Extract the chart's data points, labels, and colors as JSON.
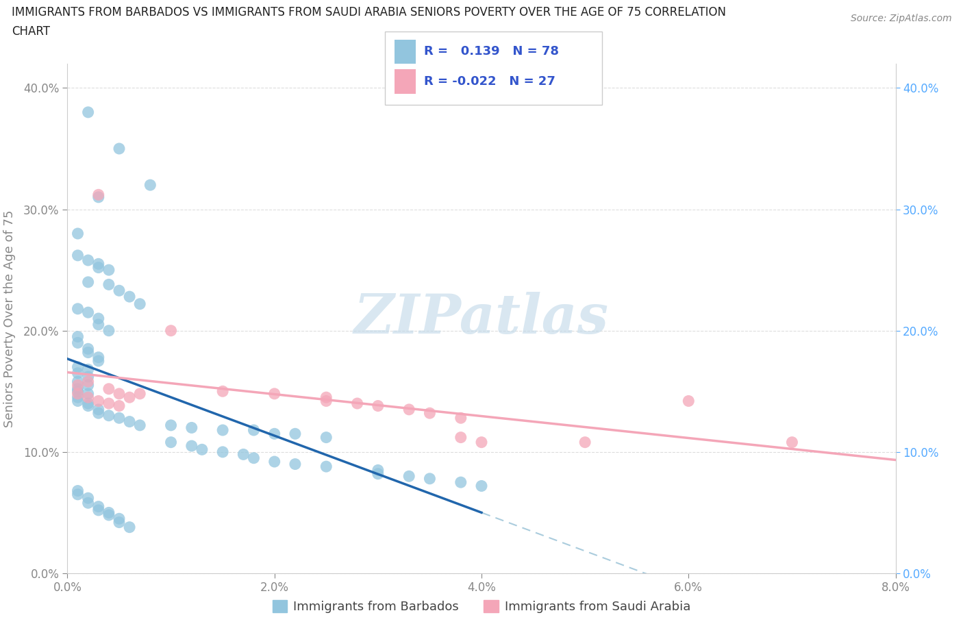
{
  "title_line1": "IMMIGRANTS FROM BARBADOS VS IMMIGRANTS FROM SAUDI ARABIA SENIORS POVERTY OVER THE AGE OF 75 CORRELATION",
  "title_line2": "CHART",
  "source": "Source: ZipAtlas.com",
  "ylabel": "Seniors Poverty Over the Age of 75",
  "x_left_label": "Immigrants from Barbados",
  "x_right_label": "Immigrants from Saudi Arabia",
  "barbados_color": "#92c5de",
  "saudi_color": "#f4a6b8",
  "barbados_line_color": "#2166ac",
  "saudi_line_color": "#f4a6b8",
  "trend_dashed_color": "#aaccdd",
  "R_barbados": 0.139,
  "N_barbados": 78,
  "R_saudi": -0.022,
  "N_saudi": 27,
  "ylim": [
    0.0,
    0.42
  ],
  "xlim": [
    0.0,
    0.08
  ],
  "yticks": [
    0.0,
    0.1,
    0.2,
    0.3,
    0.4
  ],
  "xticks": [
    0.0,
    0.02,
    0.04,
    0.06,
    0.08
  ],
  "watermark": "ZIPatlas",
  "watermark_color": "#c0d8e8",
  "legend_text_color": "#3355cc",
  "background": "#ffffff",
  "grid_color": "#dddddd",
  "axis_color": "#cccccc",
  "tick_color": "#888888",
  "right_axis_color": "#55aaff",
  "barbados_x": [
    0.002,
    0.005,
    0.008,
    0.003,
    0.001,
    0.001,
    0.002,
    0.003,
    0.003,
    0.004,
    0.002,
    0.004,
    0.005,
    0.006,
    0.007,
    0.001,
    0.002,
    0.003,
    0.003,
    0.004,
    0.001,
    0.001,
    0.002,
    0.002,
    0.003,
    0.003,
    0.001,
    0.002,
    0.001,
    0.002,
    0.001,
    0.002,
    0.001,
    0.001,
    0.002,
    0.001,
    0.001,
    0.002,
    0.002,
    0.003,
    0.003,
    0.004,
    0.005,
    0.006,
    0.007,
    0.01,
    0.012,
    0.015,
    0.018,
    0.02,
    0.022,
    0.025,
    0.01,
    0.012,
    0.013,
    0.015,
    0.017,
    0.018,
    0.02,
    0.022,
    0.025,
    0.03,
    0.03,
    0.033,
    0.035,
    0.038,
    0.04,
    0.001,
    0.001,
    0.002,
    0.002,
    0.003,
    0.003,
    0.004,
    0.004,
    0.005,
    0.005,
    0.006
  ],
  "barbados_y": [
    0.38,
    0.35,
    0.32,
    0.31,
    0.28,
    0.262,
    0.258,
    0.255,
    0.252,
    0.25,
    0.24,
    0.238,
    0.233,
    0.228,
    0.222,
    0.218,
    0.215,
    0.21,
    0.205,
    0.2,
    0.195,
    0.19,
    0.185,
    0.182,
    0.178,
    0.175,
    0.17,
    0.168,
    0.165,
    0.162,
    0.158,
    0.155,
    0.152,
    0.15,
    0.148,
    0.145,
    0.142,
    0.14,
    0.138,
    0.135,
    0.132,
    0.13,
    0.128,
    0.125,
    0.122,
    0.122,
    0.12,
    0.118,
    0.118,
    0.115,
    0.115,
    0.112,
    0.108,
    0.105,
    0.102,
    0.1,
    0.098,
    0.095,
    0.092,
    0.09,
    0.088,
    0.085,
    0.082,
    0.08,
    0.078,
    0.075,
    0.072,
    0.068,
    0.065,
    0.062,
    0.058,
    0.055,
    0.052,
    0.05,
    0.048,
    0.045,
    0.042,
    0.038
  ],
  "saudi_x": [
    0.001,
    0.002,
    0.003,
    0.004,
    0.005,
    0.006,
    0.007,
    0.001,
    0.002,
    0.003,
    0.004,
    0.005,
    0.01,
    0.015,
    0.02,
    0.025,
    0.025,
    0.028,
    0.03,
    0.033,
    0.035,
    0.038,
    0.038,
    0.04,
    0.05,
    0.06,
    0.07
  ],
  "saudi_y": [
    0.155,
    0.158,
    0.312,
    0.152,
    0.148,
    0.145,
    0.148,
    0.148,
    0.145,
    0.142,
    0.14,
    0.138,
    0.2,
    0.15,
    0.148,
    0.145,
    0.142,
    0.14,
    0.138,
    0.135,
    0.132,
    0.128,
    0.112,
    0.108,
    0.108,
    0.142,
    0.108
  ]
}
